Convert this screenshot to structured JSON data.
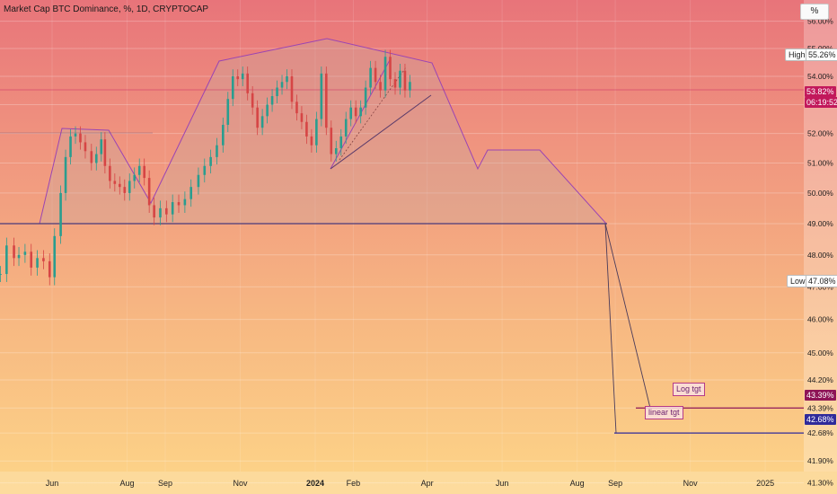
{
  "title": "Market Cap BTC Dominance, %, 1D, CRYPTOCAP",
  "unit_button": "%",
  "colors": {
    "pattern": "#9b44b3",
    "neckline": "#4a3b7a",
    "log_target": "#8e1456",
    "linear_target": "#2f2a9a",
    "current_price": "#c2185b",
    "candle_up": "#2a9d8f",
    "candle_down": "#d64545"
  },
  "chart_data": {
    "type": "line",
    "title": "Market Cap BTC Dominance, %, 1D, CRYPTOCAP",
    "ylabel": "%",
    "ylim": [
      41.0,
      56.6
    ],
    "y_scale": "log",
    "x_ticks": [
      "Jun",
      "Aug",
      "Sep",
      "Nov",
      "2024",
      "Feb",
      "Apr",
      "Jun",
      "Aug",
      "Sep",
      "Nov",
      "2025"
    ],
    "y_ticks": [
      "56.00%",
      "55.00%",
      "54.00%",
      "53.00%",
      "52.00%",
      "51.00%",
      "50.00%",
      "49.00%",
      "48.00%",
      "47.00%",
      "46.00%",
      "45.00%",
      "44.20%",
      "43.39%",
      "42.68%",
      "41.90%",
      "41.30%"
    ],
    "y_tick_values": [
      56.0,
      55.0,
      54.0,
      53.0,
      52.0,
      51.0,
      50.0,
      49.0,
      48.0,
      47.0,
      46.0,
      45.0,
      44.2,
      43.39,
      42.68,
      41.9,
      41.3
    ],
    "series": [
      {
        "x": [
          "2023-04-20",
          "2023-04-25",
          "2023-05-01",
          "2023-05-05",
          "2023-05-10",
          "2023-05-15",
          "2023-05-20",
          "2023-05-25",
          "2023-05-30",
          "2023-06-03",
          "2023-06-08",
          "2023-06-12",
          "2023-06-16",
          "2023-06-20",
          "2023-06-24",
          "2023-06-28",
          "2023-07-03",
          "2023-07-07",
          "2023-07-11",
          "2023-07-14",
          "2023-07-18",
          "2023-07-22",
          "2023-07-26",
          "2023-07-30",
          "2023-08-03",
          "2023-08-07",
          "2023-08-11",
          "2023-08-15",
          "2023-08-19",
          "2023-08-23",
          "2023-08-28",
          "2023-09-02",
          "2023-09-07",
          "2023-09-12",
          "2023-09-17",
          "2023-09-22",
          "2023-09-28",
          "2023-10-03",
          "2023-10-08",
          "2023-10-13",
          "2023-10-18",
          "2023-10-22",
          "2023-10-26",
          "2023-10-30",
          "2023-11-03",
          "2023-11-07",
          "2023-11-11",
          "2023-11-15",
          "2023-11-19",
          "2023-11-23",
          "2023-11-27",
          "2023-12-01",
          "2023-12-05",
          "2023-12-09",
          "2023-12-13",
          "2023-12-17",
          "2023-12-21",
          "2023-12-25",
          "2023-12-29",
          "2024-01-02",
          "2024-01-06",
          "2024-01-10",
          "2024-01-14",
          "2024-01-18",
          "2024-01-22",
          "2024-01-26",
          "2024-01-30",
          "2024-02-03",
          "2024-02-07",
          "2024-02-11",
          "2024-02-15",
          "2024-02-19",
          "2024-02-23",
          "2024-02-27",
          "2024-03-02",
          "2024-03-06",
          "2024-03-10",
          "2024-03-14",
          "2024-03-18"
        ],
        "values": [
          47.4,
          48.3,
          47.9,
          48.0,
          48.1,
          47.6,
          47.9,
          47.8,
          47.3,
          48.6,
          50.0,
          51.2,
          51.9,
          52.0,
          51.7,
          51.4,
          51.0,
          51.3,
          51.8,
          50.9,
          50.4,
          50.3,
          50.2,
          50.0,
          50.4,
          50.6,
          50.9,
          50.5,
          49.6,
          49.2,
          49.5,
          49.3,
          49.7,
          49.6,
          49.8,
          50.2,
          50.6,
          50.9,
          51.2,
          51.6,
          52.3,
          53.2,
          54.0,
          53.9,
          54.1,
          53.4,
          52.9,
          52.2,
          52.6,
          53.0,
          53.3,
          53.6,
          53.8,
          54.0,
          53.1,
          52.7,
          52.4,
          51.9,
          51.6,
          52.5,
          54.1,
          52.2,
          51.3,
          51.5,
          51.9,
          52.5,
          52.9,
          52.6,
          52.9,
          53.6,
          54.3,
          53.8,
          53.5,
          54.7,
          53.9,
          53.6,
          54.2,
          53.5,
          53.8
        ]
      }
    ],
    "price_labels": {
      "high": "High",
      "high_value": "55.26%",
      "low": "Low",
      "low_value": "47.08%",
      "current_value": "53.82%",
      "countdown": "06:19:52",
      "log_target_value": "43.39%",
      "linear_target_value": "42.68%"
    },
    "annotations": [
      "Log tgt",
      "linear tgt"
    ]
  }
}
